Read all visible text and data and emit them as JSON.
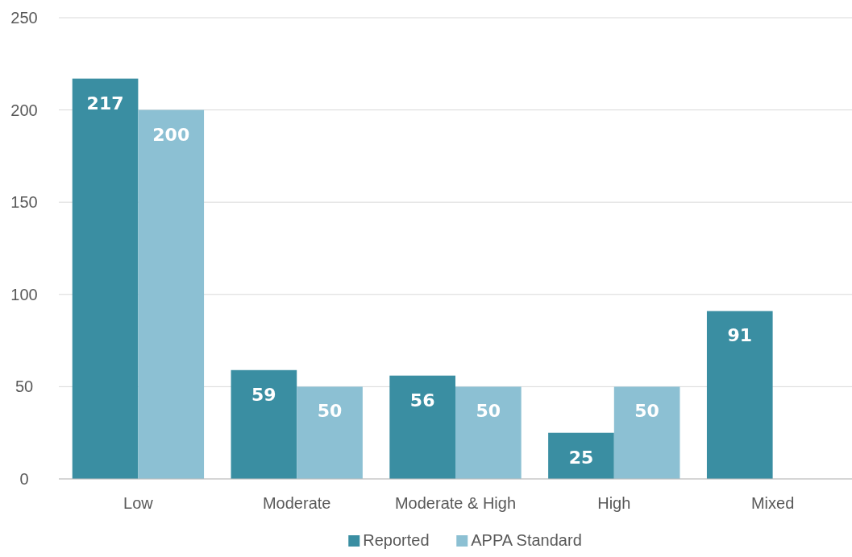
{
  "chart_data": {
    "type": "bar",
    "categories": [
      "Low",
      "Moderate",
      "Moderate & High",
      "High",
      "Mixed"
    ],
    "series": [
      {
        "name": "Reported",
        "color": "#3a8ea2",
        "values": [
          217,
          59,
          56,
          25,
          91
        ]
      },
      {
        "name": "APPA Standard",
        "color": "#8cc0d3",
        "values": [
          200,
          50,
          50,
          50,
          null
        ]
      }
    ],
    "ylim": [
      0,
      250
    ],
    "yticks": [
      0,
      50,
      100,
      150,
      200,
      250
    ],
    "grid": "y",
    "legend": "bottom",
    "data_labels": true
  }
}
